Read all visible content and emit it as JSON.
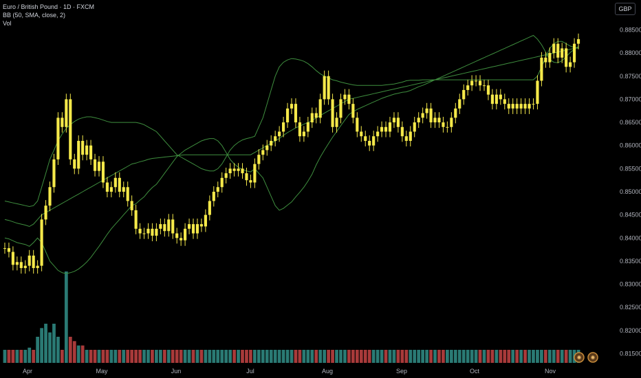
{
  "legend": {
    "symbol_line": "Euro / British Pound · 1D · FXCM",
    "bb_line": "BB (50, SMA, close, 2)",
    "vol_line": "Vol"
  },
  "currency_button": "GBP",
  "colors": {
    "background": "#000000",
    "candle_up": "#f5e94a",
    "candle_down": "#f5e94a",
    "bb_lines": "#3f8f3f",
    "vol_up": "#2a7a74",
    "vol_down": "#a83a3a"
  },
  "chart_data": {
    "type": "candlestick",
    "y_ticks": [
      "0.88500",
      "0.88000",
      "0.87500",
      "0.87000",
      "0.86500",
      "0.86000",
      "0.85500",
      "0.85000",
      "0.84500",
      "0.84000",
      "0.83500",
      "0.83000",
      "0.82500",
      "0.82000",
      "0.81500"
    ],
    "ylim": [
      0.813,
      0.887
    ],
    "x_ticks": [
      "Apr",
      "May",
      "Jun",
      "Jul",
      "Aug",
      "Sep",
      "Oct",
      "Nov"
    ],
    "close": [
      0.8378,
      0.837,
      0.8342,
      0.8348,
      0.8335,
      0.834,
      0.8362,
      0.8335,
      0.834,
      0.844,
      0.847,
      0.851,
      0.857,
      0.866,
      0.864,
      0.87,
      0.857,
      0.855,
      0.861,
      0.858,
      0.86,
      0.857,
      0.8545,
      0.8565,
      0.852,
      0.85,
      0.851,
      0.853,
      0.85,
      0.851,
      0.848,
      0.846,
      0.842,
      0.841,
      0.841,
      0.842,
      0.8405,
      0.842,
      0.843,
      0.8415,
      0.844,
      0.841,
      0.84,
      0.8395,
      0.842,
      0.843,
      0.841,
      0.843,
      0.8425,
      0.845,
      0.848,
      0.85,
      0.851,
      0.853,
      0.854,
      0.855,
      0.8545,
      0.855,
      0.854,
      0.8525,
      0.852,
      0.856,
      0.858,
      0.859,
      0.86,
      0.861,
      0.862,
      0.863,
      0.865,
      0.868,
      0.869,
      0.865,
      0.862,
      0.863,
      0.865,
      0.867,
      0.866,
      0.87,
      0.875,
      0.87,
      0.864,
      0.866,
      0.87,
      0.871,
      0.869,
      0.866,
      0.863,
      0.862,
      0.861,
      0.86,
      0.862,
      0.863,
      0.864,
      0.863,
      0.865,
      0.866,
      0.864,
      0.862,
      0.861,
      0.863,
      0.865,
      0.866,
      0.867,
      0.868,
      0.865,
      0.866,
      0.865,
      0.864,
      0.864,
      0.866,
      0.868,
      0.87,
      0.872,
      0.873,
      0.874,
      0.874,
      0.873,
      0.873,
      0.871,
      0.869,
      0.871,
      0.87,
      0.869,
      0.868,
      0.869,
      0.868,
      0.869,
      0.868,
      0.869,
      0.869,
      0.874,
      0.879,
      0.878,
      0.88,
      0.882,
      0.879,
      0.881,
      0.877,
      0.878,
      0.882,
      0.883
    ],
    "bb_upper": [
      0.848,
      0.8478,
      0.8476,
      0.8474,
      0.8472,
      0.847,
      0.8468,
      0.847,
      0.848,
      0.851,
      0.854,
      0.857,
      0.859,
      0.861,
      0.8625,
      0.8637,
      0.8645,
      0.8652,
      0.8657,
      0.866,
      0.8662,
      0.8662,
      0.866,
      0.8658,
      0.8655,
      0.8652,
      0.865,
      0.865,
      0.865,
      0.865,
      0.865,
      0.865,
      0.865,
      0.8648,
      0.8645,
      0.864,
      0.8635,
      0.863,
      0.862,
      0.861,
      0.86,
      0.859,
      0.858,
      0.8575,
      0.857,
      0.8565,
      0.856,
      0.8555,
      0.855,
      0.8547,
      0.8545,
      0.8545,
      0.855,
      0.856,
      0.8575,
      0.859,
      0.86,
      0.8607,
      0.8612,
      0.8615,
      0.8617,
      0.862,
      0.864,
      0.866,
      0.869,
      0.872,
      0.875,
      0.877,
      0.878,
      0.8785,
      0.8788,
      0.8787,
      0.8785,
      0.8782,
      0.8777,
      0.877,
      0.8762,
      0.8755,
      0.875,
      0.8746,
      0.8742,
      0.874,
      0.8737,
      0.8735,
      0.8733,
      0.8731,
      0.873,
      0.873,
      0.873,
      0.873,
      0.873,
      0.873,
      0.873,
      0.8731,
      0.8732,
      0.8733,
      0.8735,
      0.8737,
      0.874,
      0.8741,
      0.8741,
      0.8741,
      0.8742,
      0.8742,
      0.8742,
      0.8742,
      0.8742,
      0.8742,
      0.8742,
      0.8742,
      0.8742,
      0.8742,
      0.8742,
      0.8742,
      0.8742,
      0.8742,
      0.8742,
      0.8742,
      0.8742,
      0.8742,
      0.8742,
      0.8742,
      0.8742,
      0.8742,
      0.8742,
      0.8742,
      0.8742,
      0.8742,
      0.8742,
      0.8742,
      0.875,
      0.877,
      0.879,
      0.881,
      0.882,
      0.8825,
      0.8825,
      0.882,
      0.8815,
      0.8812,
      0.881
    ],
    "bb_middle": [
      0.844,
      0.8438,
      0.8435,
      0.8432,
      0.843,
      0.8428,
      0.8425,
      0.843,
      0.844,
      0.845,
      0.8455,
      0.846,
      0.8465,
      0.847,
      0.8475,
      0.848,
      0.8485,
      0.849,
      0.8495,
      0.85,
      0.8505,
      0.851,
      0.8515,
      0.852,
      0.8525,
      0.853,
      0.8535,
      0.854,
      0.8545,
      0.855,
      0.8555,
      0.856,
      0.8562,
      0.8565,
      0.8567,
      0.857,
      0.8572,
      0.8573,
      0.8574,
      0.8575,
      0.8576,
      0.8577,
      0.8578,
      0.8579,
      0.858,
      0.858,
      0.858,
      0.858,
      0.858,
      0.858,
      0.858,
      0.858,
      0.858,
      0.858,
      0.858,
      0.858,
      0.858,
      0.858,
      0.858,
      0.858,
      0.858,
      0.8585,
      0.859,
      0.8595,
      0.86,
      0.8605,
      0.861,
      0.8615,
      0.8622,
      0.8628,
      0.8633,
      0.8638,
      0.8642,
      0.8646,
      0.865,
      0.8654,
      0.866,
      0.8665,
      0.867,
      0.8675,
      0.868,
      0.8685,
      0.869,
      0.8695,
      0.87,
      0.8702,
      0.8704,
      0.8706,
      0.8708,
      0.871,
      0.8712,
      0.8714,
      0.8716,
      0.8718,
      0.872,
      0.8722,
      0.8724,
      0.8726,
      0.8728,
      0.873,
      0.8732,
      0.8734,
      0.8736,
      0.8738,
      0.874,
      0.8742,
      0.8744,
      0.8746,
      0.8748,
      0.875,
      0.8752,
      0.8754,
      0.8756,
      0.8758,
      0.876,
      0.8762,
      0.8764,
      0.8766,
      0.8768,
      0.877,
      0.8772,
      0.8774,
      0.8776,
      0.8778,
      0.878,
      0.8782,
      0.8784,
      0.8786,
      0.8788,
      0.879,
      0.8792,
      0.8794,
      0.8796,
      0.8798,
      0.88,
      0.8802,
      0.8804,
      0.8806,
      0.8808,
      0.881,
      0.8812
    ],
    "bb_lower": [
      0.84,
      0.8398,
      0.8394,
      0.839,
      0.8388,
      0.8386,
      0.8382,
      0.839,
      0.84,
      0.839,
      0.837,
      0.835,
      0.834,
      0.833,
      0.8325,
      0.8323,
      0.8325,
      0.8328,
      0.8333,
      0.834,
      0.8348,
      0.8358,
      0.837,
      0.8382,
      0.8395,
      0.8408,
      0.842,
      0.843,
      0.844,
      0.845,
      0.846,
      0.847,
      0.8474,
      0.8482,
      0.8489,
      0.85,
      0.8509,
      0.8516,
      0.8528,
      0.854,
      0.8552,
      0.8564,
      0.8576,
      0.8583,
      0.859,
      0.8595,
      0.86,
      0.8605,
      0.861,
      0.8613,
      0.8615,
      0.8615,
      0.861,
      0.86,
      0.8585,
      0.857,
      0.856,
      0.8553,
      0.8548,
      0.8545,
      0.8543,
      0.855,
      0.854,
      0.853,
      0.851,
      0.849,
      0.847,
      0.846,
      0.8464,
      0.8471,
      0.8478,
      0.8489,
      0.8499,
      0.851,
      0.8523,
      0.8538,
      0.8558,
      0.8575,
      0.859,
      0.8604,
      0.8618,
      0.863,
      0.8643,
      0.8655,
      0.8667,
      0.8673,
      0.8678,
      0.8682,
      0.8686,
      0.869,
      0.8694,
      0.8698,
      0.8702,
      0.8705,
      0.8708,
      0.8711,
      0.8713,
      0.8715,
      0.8716,
      0.8719,
      0.8723,
      0.8727,
      0.873,
      0.8734,
      0.8738,
      0.8742,
      0.8746,
      0.875,
      0.8754,
      0.8758,
      0.8762,
      0.8766,
      0.877,
      0.8774,
      0.8778,
      0.8782,
      0.8786,
      0.879,
      0.8794,
      0.8798,
      0.8802,
      0.8806,
      0.881,
      0.8814,
      0.8818,
      0.8822,
      0.8826,
      0.883,
      0.8834,
      0.8838,
      0.883,
      0.8818,
      0.8802,
      0.8786,
      0.878,
      0.8779,
      0.8783,
      0.8792,
      0.8801,
      0.8808,
      0.8814
    ],
    "volume": [
      0.3,
      0.3,
      0.3,
      0.3,
      0.3,
      0.3,
      0.35,
      0.3,
      0.6,
      0.8,
      0.9,
      0.7,
      0.9,
      0.6,
      0.3,
      2.1,
      0.6,
      0.5,
      0.4,
      0.4,
      0.3,
      0.3,
      0.3,
      0.3,
      0.3,
      0.3,
      0.3,
      0.3,
      0.3,
      0.3,
      0.3,
      0.3,
      0.3,
      0.3,
      0.3,
      0.3,
      0.3,
      0.3,
      0.3,
      0.3,
      0.3,
      0.3,
      0.3,
      0.3,
      0.3,
      0.3,
      0.3,
      0.3,
      0.3,
      0.3,
      0.3,
      0.3,
      0.3,
      0.3,
      0.3,
      0.3,
      0.3,
      0.3,
      0.3,
      0.3,
      0.3,
      0.3,
      0.3,
      0.3,
      0.3,
      0.3,
      0.3,
      0.3,
      0.3,
      0.3,
      0.3,
      0.3,
      0.3,
      0.3,
      0.3,
      0.3,
      0.3,
      0.3,
      0.3,
      0.3,
      0.3,
      0.3,
      0.3,
      0.3,
      0.3,
      0.3,
      0.3,
      0.3,
      0.3,
      0.3,
      0.3,
      0.3,
      0.3,
      0.3,
      0.3,
      0.3,
      0.3,
      0.3,
      0.3,
      0.3,
      0.3,
      0.3,
      0.3,
      0.3,
      0.3,
      0.3,
      0.3,
      0.3,
      0.3,
      0.3,
      0.3,
      0.3,
      0.3,
      0.3,
      0.3,
      0.3,
      0.3,
      0.3,
      0.3,
      0.3,
      0.3,
      0.3,
      0.3,
      0.3,
      0.3,
      0.3,
      0.3,
      0.3,
      0.3,
      0.3,
      0.3,
      0.3,
      0.3,
      0.3,
      0.3,
      0.3,
      0.3,
      0.3,
      0.3,
      0.3,
      0.3
    ]
  }
}
